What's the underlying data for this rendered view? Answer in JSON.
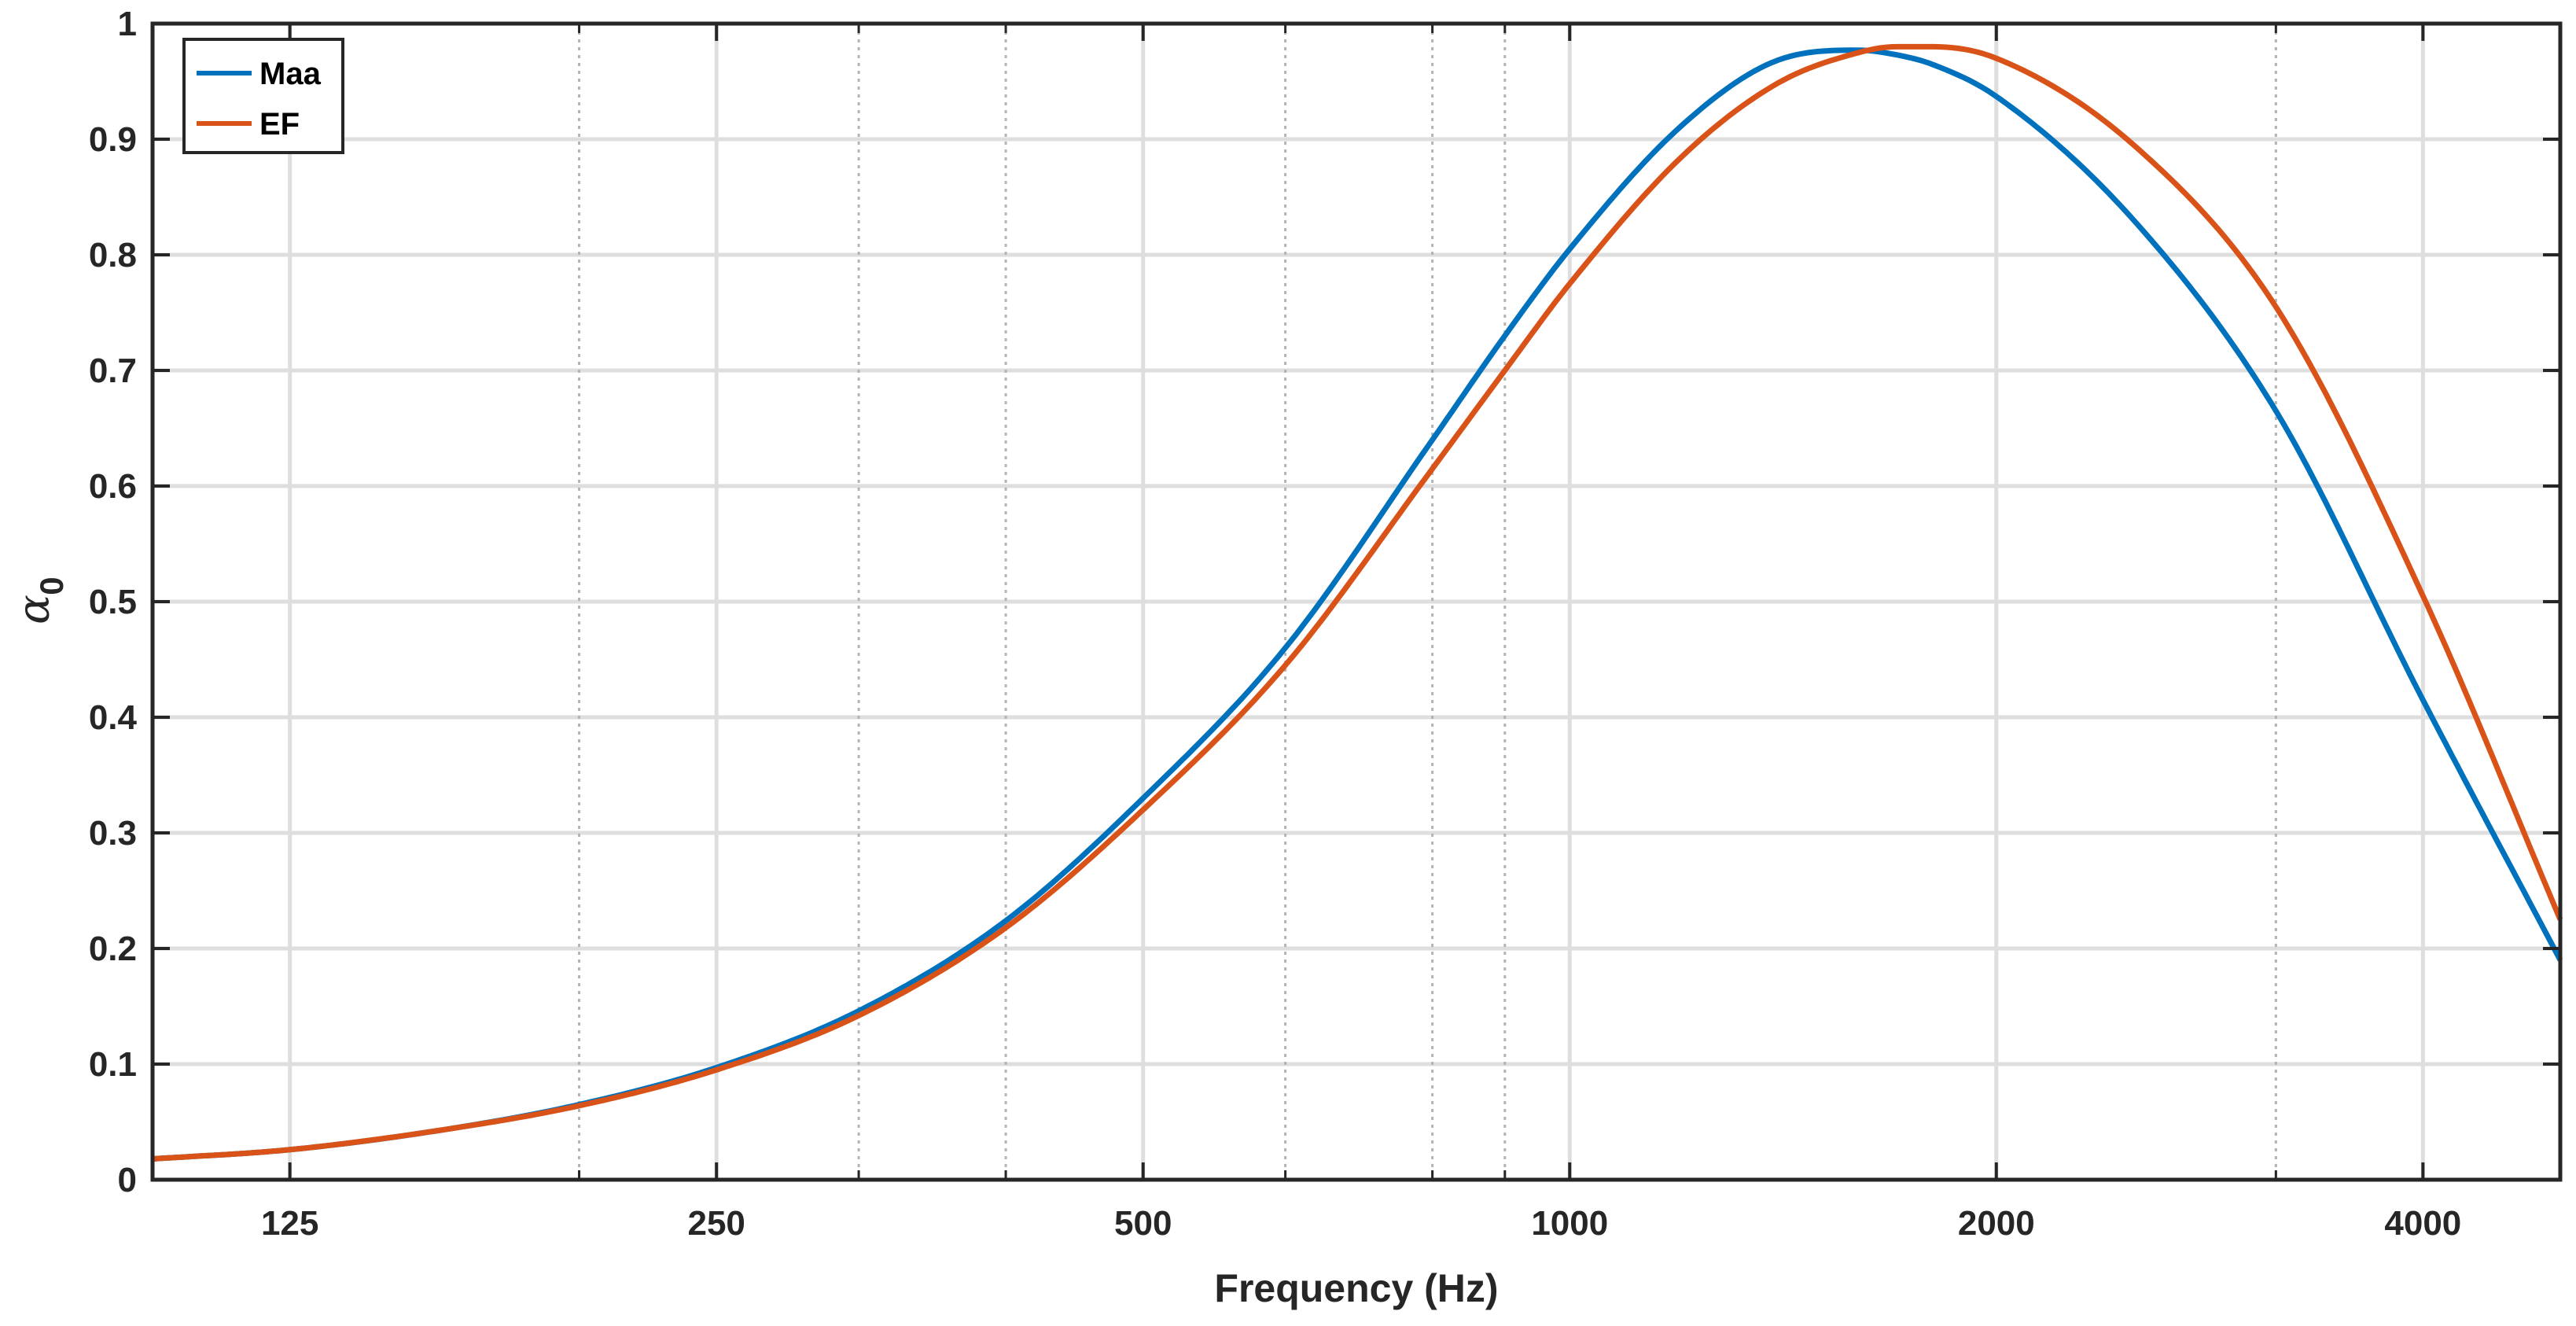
{
  "chart_data": {
    "type": "line",
    "xlabel": "Frequency (Hz)",
    "ylabel": "α",
    "ylabel_subscript": "0",
    "xscale": "log",
    "xlim": [
      100,
      5000
    ],
    "ylim": [
      0,
      1
    ],
    "major_xticks": [
      125,
      250,
      500,
      1000,
      2000,
      4000
    ],
    "minor_xticks": [
      200,
      315,
      400,
      630,
      800,
      900,
      3150
    ],
    "yticks": [
      0,
      0.1,
      0.2,
      0.3,
      0.4,
      0.5,
      0.6,
      0.7,
      0.8,
      0.9,
      1
    ],
    "ytick_labels": [
      "0",
      "0.1",
      "0.2",
      "0.3",
      "0.4",
      "0.5",
      "0.6",
      "0.7",
      "0.8",
      "0.9",
      "1"
    ],
    "xtick_labels": [
      "125",
      "250",
      "500",
      "1000",
      "2000",
      "4000"
    ],
    "grid": true,
    "legend_position": "top-left",
    "series": [
      {
        "name": "Maa",
        "color": "#0072BD",
        "x": [
          100,
          125,
          160,
          200,
          250,
          315,
          400,
          500,
          630,
          800,
          900,
          1000,
          1200,
          1400,
          1600,
          1700,
          1800,
          2000,
          2500,
          3150,
          4000,
          5000
        ],
        "y": [
          0.018,
          0.026,
          0.043,
          0.065,
          0.097,
          0.146,
          0.224,
          0.33,
          0.46,
          0.64,
          0.73,
          0.805,
          0.912,
          0.968,
          0.977,
          0.973,
          0.965,
          0.937,
          0.83,
          0.665,
          0.415,
          0.19
        ]
      },
      {
        "name": "EF",
        "color": "#D95319",
        "x": [
          100,
          125,
          160,
          200,
          250,
          315,
          400,
          500,
          630,
          800,
          900,
          1000,
          1200,
          1400,
          1600,
          1700,
          1800,
          2000,
          2500,
          3150,
          4000,
          5000
        ],
        "y": [
          0.018,
          0.026,
          0.043,
          0.064,
          0.095,
          0.142,
          0.218,
          0.32,
          0.445,
          0.615,
          0.7,
          0.775,
          0.885,
          0.948,
          0.975,
          0.98,
          0.98,
          0.97,
          0.895,
          0.755,
          0.505,
          0.225
        ]
      }
    ]
  }
}
